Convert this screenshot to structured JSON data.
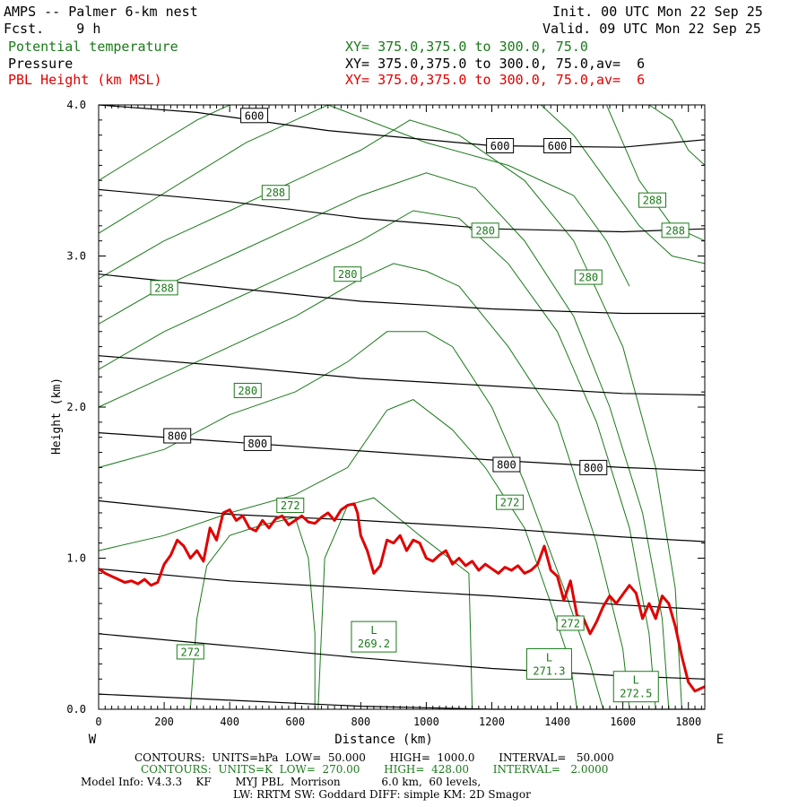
{
  "header": {
    "title": "AMPS -- Palmer 6-km nest",
    "fcst": "Fcst.    9 h",
    "init": "Init. 00 UTC Mon 22 Sep 25",
    "valid": "Valid. 09 UTC Mon 22 Sep 25",
    "var1": "Potential temperature",
    "var2": "Pressure",
    "var3": "PBL Height (km MSL)",
    "xy1": "XY= 375.0,375.0 to 300.0, 75.0",
    "xy2": "XY= 375.0,375.0 to 300.0, 75.0,av=  6",
    "xy3": "XY= 375.0,375.0 to 300.0, 75.0,av=  6"
  },
  "footer": {
    "line1": "CONTOURS:  UNITS=hPa  LOW=  50.000       HIGH=  1000.0       INTERVAL=   50.000",
    "line2": "CONTOURS:  UNITS=K  LOW=  270.00       HIGH=  428.00       INTERVAL=   2.0000",
    "line3": "Model Info: V4.3.3    KF       MYJ PBL  Morrison            6.0 km,  60 levels,",
    "line4": "LW: RRTM SW: Goddard DIFF: simple KM: 2D Smagor"
  },
  "colors": {
    "pressure": "#000000",
    "theta": "#1a7a1a",
    "pbl": "#e00000"
  },
  "chart_data": {
    "type": "line",
    "title": "AMPS -- Palmer 6-km nest",
    "xlabel": "Distance (km)",
    "ylabel": "Height (km)",
    "xlim": [
      0,
      1850
    ],
    "ylim": [
      0,
      4
    ],
    "x_ticks": [
      0,
      200,
      400,
      600,
      800,
      1000,
      1200,
      1400,
      1600,
      1800
    ],
    "y_ticks": [
      0.0,
      1.0,
      2.0,
      3.0,
      4.0
    ],
    "y_tick_labels": [
      "0.0",
      "1.0",
      "2.0",
      "3.0",
      "4.0"
    ],
    "x_end_left": "W",
    "x_end_right": "E",
    "pressure_contours": [
      {
        "x": [
          0,
          400,
          800,
          1200,
          1600,
          1850
        ],
        "y": [
          0.1,
          0.06,
          0.02,
          0.0,
          0.0,
          0.0
        ]
      },
      {
        "x": [
          0,
          400,
          800,
          1200,
          1600,
          1850
        ],
        "y": [
          0.5,
          0.42,
          0.34,
          0.27,
          0.22,
          0.2
        ]
      },
      {
        "x": [
          0,
          400,
          800,
          1200,
          1600,
          1850
        ],
        "y": [
          0.93,
          0.85,
          0.8,
          0.75,
          0.69,
          0.66
        ]
      },
      {
        "x": [
          0,
          400,
          800,
          1200,
          1600,
          1850
        ],
        "y": [
          1.38,
          1.29,
          1.25,
          1.2,
          1.14,
          1.11
        ]
      },
      {
        "x": [
          0,
          400,
          800,
          1200,
          1600,
          1850
        ],
        "y": [
          1.83,
          1.77,
          1.71,
          1.65,
          1.6,
          1.58
        ]
      },
      {
        "x": [
          0,
          400,
          800,
          1200,
          1600,
          1850
        ],
        "y": [
          2.34,
          2.27,
          2.19,
          2.14,
          2.09,
          2.08
        ]
      },
      {
        "x": [
          0,
          400,
          800,
          1200,
          1600,
          1850
        ],
        "y": [
          2.88,
          2.79,
          2.7,
          2.65,
          2.62,
          2.62
        ]
      },
      {
        "x": [
          0,
          400,
          800,
          1200,
          1600,
          1850
        ],
        "y": [
          3.44,
          3.36,
          3.25,
          3.18,
          3.16,
          3.18
        ]
      },
      {
        "x": [
          0,
          300,
          700,
          1200,
          1600,
          1850
        ],
        "y": [
          4.0,
          3.95,
          3.83,
          3.73,
          3.72,
          3.77
        ]
      }
    ],
    "pressure_labels": [
      {
        "text": "600",
        "x": 475,
        "y": 3.93
      },
      {
        "text": "600",
        "x": 1225,
        "y": 3.73
      },
      {
        "text": "600",
        "x": 1400,
        "y": 3.73
      },
      {
        "text": "800",
        "x": 240,
        "y": 1.81
      },
      {
        "text": "800",
        "x": 485,
        "y": 1.76
      },
      {
        "text": "800",
        "x": 1245,
        "y": 1.62
      },
      {
        "text": "800",
        "x": 1510,
        "y": 1.6
      }
    ],
    "theta_contours": [
      {
        "x": [
          280,
          300,
          330,
          400,
          500,
          600,
          640,
          660,
          660
        ],
        "y": [
          0.0,
          0.6,
          0.95,
          1.15,
          1.22,
          1.27,
          1.0,
          0.5,
          0.0
        ]
      },
      {
        "x": [
          670,
          690,
          760,
          840,
          980,
          1130,
          1135,
          1140
        ],
        "y": [
          0.0,
          1.0,
          1.35,
          1.4,
          1.15,
          0.9,
          0.5,
          0.0
        ]
      },
      {
        "x": [
          0,
          200,
          400,
          600,
          760,
          880,
          960,
          1080,
          1180,
          1300,
          1380,
          1440,
          1460
        ],
        "y": [
          1.05,
          1.15,
          1.3,
          1.42,
          1.6,
          1.98,
          2.05,
          1.85,
          1.6,
          1.2,
          0.7,
          0.3,
          0.0
        ]
      },
      {
        "x": [
          0,
          200,
          400,
          600,
          760,
          880,
          1000,
          1080,
          1200,
          1300,
          1420,
          1500,
          1540
        ],
        "y": [
          1.6,
          1.72,
          1.95,
          2.1,
          2.3,
          2.5,
          2.5,
          2.4,
          2.0,
          1.5,
          0.8,
          0.3,
          0.0
        ]
      },
      {
        "x": [
          0,
          200,
          400,
          600,
          800,
          900,
          1000,
          1100,
          1250,
          1400,
          1520,
          1600,
          1620
        ],
        "y": [
          2.0,
          2.2,
          2.4,
          2.6,
          2.85,
          2.95,
          2.9,
          2.8,
          2.4,
          1.9,
          1.1,
          0.4,
          0.0
        ]
      },
      {
        "x": [
          0,
          200,
          400,
          600,
          800,
          960,
          1100,
          1250,
          1400,
          1520,
          1620,
          1680,
          1700
        ],
        "y": [
          2.25,
          2.5,
          2.7,
          2.9,
          3.1,
          3.3,
          3.25,
          2.95,
          2.5,
          1.9,
          1.2,
          0.5,
          0.0
        ]
      },
      {
        "x": [
          0,
          200,
          400,
          600,
          800,
          1000,
          1150,
          1300,
          1450,
          1560,
          1660,
          1720,
          1740
        ],
        "y": [
          2.55,
          2.8,
          3.0,
          3.2,
          3.4,
          3.55,
          3.45,
          3.1,
          2.6,
          2.0,
          1.3,
          0.6,
          0.0
        ]
      },
      {
        "x": [
          0,
          200,
          400,
          600,
          800,
          950,
          1100,
          1300,
          1450,
          1600,
          1700,
          1760,
          1780
        ],
        "y": [
          2.85,
          3.1,
          3.3,
          3.5,
          3.7,
          3.9,
          3.8,
          3.5,
          3.1,
          2.4,
          1.6,
          0.8,
          0.0
        ]
      },
      {
        "x": [
          0,
          150,
          300,
          450,
          600,
          700,
          1000,
          1250,
          1450,
          1550,
          1620
        ],
        "y": [
          3.15,
          3.35,
          3.55,
          3.75,
          3.9,
          4.0,
          3.75,
          3.6,
          3.4,
          3.1,
          2.8
        ]
      },
      {
        "x": [
          0,
          150,
          300,
          400
        ],
        "y": [
          3.5,
          3.7,
          3.9,
          4.0
        ]
      },
      {
        "x": [
          1350,
          1450,
          1550,
          1650,
          1750,
          1850
        ],
        "y": [
          4.0,
          3.8,
          3.5,
          3.2,
          3.0,
          2.95
        ]
      },
      {
        "x": [
          1550,
          1650,
          1750,
          1850
        ],
        "y": [
          4.0,
          3.5,
          3.2,
          3.1
        ]
      },
      {
        "x": [
          1680,
          1750,
          1800,
          1850
        ],
        "y": [
          4.0,
          3.9,
          3.7,
          3.6
        ]
      }
    ],
    "theta_labels": [
      {
        "text": "288",
        "x": 540,
        "y": 3.42
      },
      {
        "text": "288",
        "x": 1690,
        "y": 3.37
      },
      {
        "text": "288",
        "x": 1760,
        "y": 3.17
      },
      {
        "text": "288",
        "x": 200,
        "y": 2.79
      },
      {
        "text": "280",
        "x": 1180,
        "y": 3.17
      },
      {
        "text": "280",
        "x": 760,
        "y": 2.88
      },
      {
        "text": "280",
        "x": 1495,
        "y": 2.86
      },
      {
        "text": "280",
        "x": 455,
        "y": 2.11
      },
      {
        "text": "272",
        "x": 585,
        "y": 1.35
      },
      {
        "text": "272",
        "x": 1255,
        "y": 1.37
      },
      {
        "text": "272",
        "x": 280,
        "y": 0.38
      },
      {
        "text": "272",
        "x": 1440,
        "y": 0.57
      }
    ],
    "minima": [
      {
        "symbol": "L",
        "value": "269.2",
        "x": 840,
        "y": 0.48
      },
      {
        "symbol": "L",
        "value": "271.3",
        "x": 1375,
        "y": 0.3
      },
      {
        "symbol": "L",
        "value": "272.5",
        "x": 1640,
        "y": 0.15
      }
    ],
    "pbl_height": {
      "name": "PBL Height (km MSL)",
      "x": [
        0,
        20,
        40,
        60,
        80,
        100,
        120,
        140,
        160,
        180,
        200,
        220,
        240,
        260,
        280,
        300,
        320,
        340,
        360,
        380,
        400,
        420,
        440,
        460,
        480,
        500,
        520,
        540,
        560,
        580,
        600,
        620,
        640,
        660,
        680,
        700,
        720,
        740,
        760,
        780,
        790,
        800,
        820,
        840,
        860,
        880,
        900,
        920,
        940,
        960,
        980,
        1000,
        1020,
        1040,
        1060,
        1080,
        1100,
        1120,
        1140,
        1160,
        1180,
        1200,
        1220,
        1240,
        1260,
        1280,
        1300,
        1320,
        1340,
        1360,
        1380,
        1400,
        1420,
        1440,
        1460,
        1480,
        1500,
        1520,
        1540,
        1560,
        1580,
        1600,
        1620,
        1640,
        1660,
        1680,
        1700,
        1720,
        1740,
        1760,
        1780,
        1800,
        1820,
        1850
      ],
      "y": [
        0.93,
        0.9,
        0.88,
        0.86,
        0.84,
        0.85,
        0.83,
        0.86,
        0.82,
        0.84,
        0.96,
        1.02,
        1.12,
        1.08,
        1.0,
        1.05,
        0.98,
        1.2,
        1.12,
        1.3,
        1.32,
        1.25,
        1.28,
        1.2,
        1.18,
        1.25,
        1.2,
        1.26,
        1.28,
        1.22,
        1.25,
        1.28,
        1.24,
        1.23,
        1.27,
        1.3,
        1.25,
        1.32,
        1.35,
        1.36,
        1.3,
        1.15,
        1.05,
        0.9,
        0.95,
        1.12,
        1.1,
        1.15,
        1.05,
        1.12,
        1.1,
        1.0,
        0.98,
        1.02,
        1.05,
        0.96,
        1.0,
        0.95,
        0.98,
        0.92,
        0.96,
        0.93,
        0.9,
        0.94,
        0.92,
        0.95,
        0.9,
        0.92,
        0.96,
        1.08,
        0.92,
        0.88,
        0.72,
        0.85,
        0.62,
        0.6,
        0.5,
        0.58,
        0.68,
        0.75,
        0.7,
        0.76,
        0.82,
        0.77,
        0.6,
        0.7,
        0.6,
        0.75,
        0.7,
        0.55,
        0.35,
        0.18,
        0.12,
        0.15
      ],
      "color": "#e00000"
    }
  }
}
